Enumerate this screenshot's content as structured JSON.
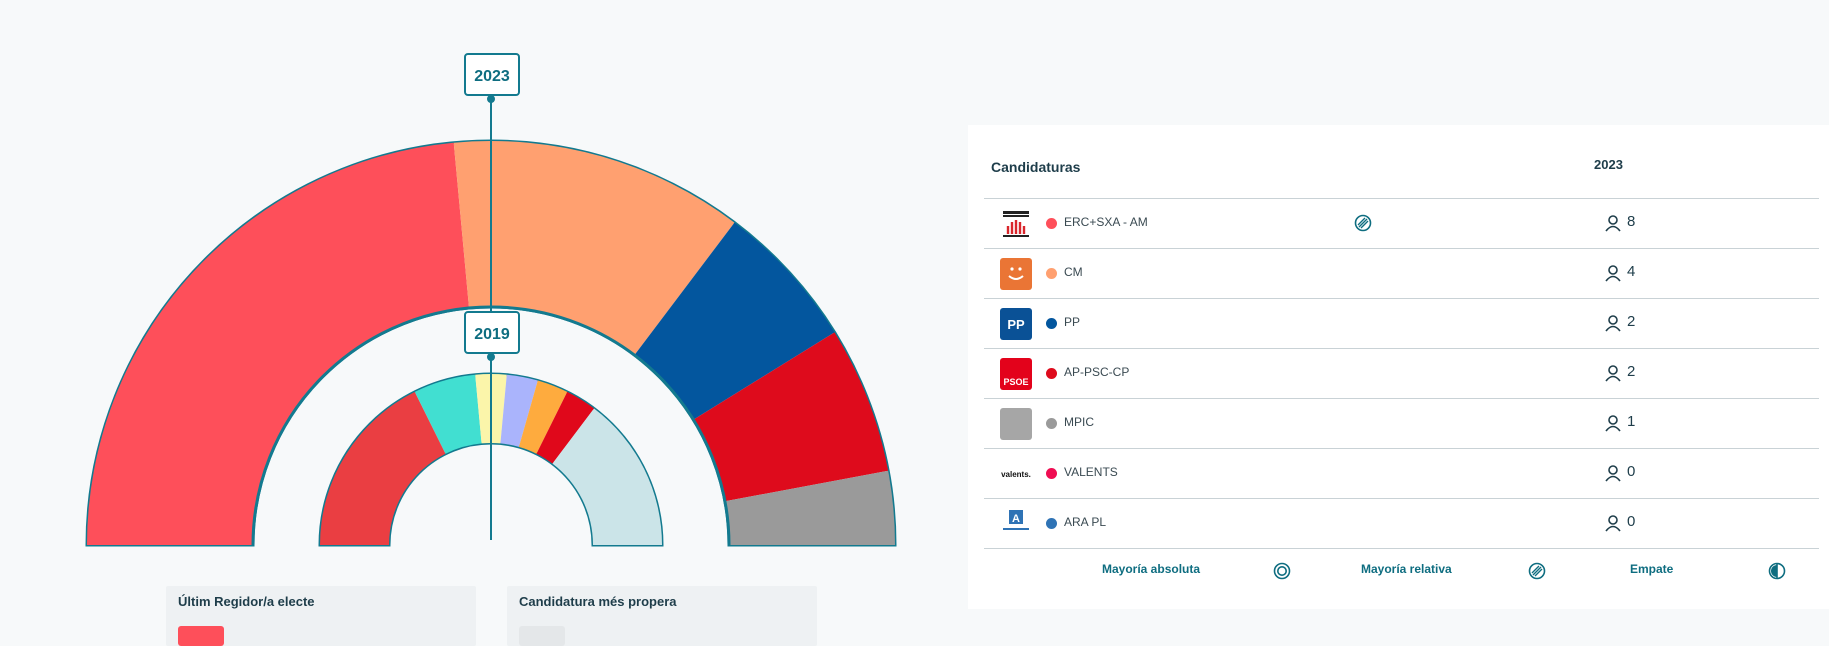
{
  "chart_data": {
    "type": "hemicycle",
    "outer": {
      "label": "2023",
      "total_seats": 17,
      "parties": [
        {
          "name": "ERC+SXA - AM",
          "seats": 8,
          "color": "#fe4f5a"
        },
        {
          "name": "CM",
          "seats": 4,
          "color": "#ffa070"
        },
        {
          "name": "PP",
          "seats": 2,
          "color": "#03569e"
        },
        {
          "name": "AP-PSC-CP",
          "seats": 2,
          "color": "#de0b1c"
        },
        {
          "name": "MPIC",
          "seats": 1,
          "color": "#9a9a9a"
        }
      ]
    },
    "inner": {
      "label": "2019",
      "segments": [
        {
          "value": 6,
          "color": "#ea3e42"
        },
        {
          "value": 2,
          "color": "#41dfd1"
        },
        {
          "value": 1,
          "color": "#fbf5aa"
        },
        {
          "value": 1,
          "color": "#aab4fc"
        },
        {
          "value": 1,
          "color": "#feab3e"
        },
        {
          "value": 1,
          "color": "#e0081b"
        },
        {
          "value": 5,
          "color": "#cbe4e8"
        }
      ]
    }
  },
  "cards": {
    "last_elected": {
      "title": "Últim Regidor/a electe",
      "color": "#fe4f5a"
    },
    "closest": {
      "title": "Candidatura més propera",
      "color": "#e4e7e9"
    }
  },
  "table": {
    "col_candidates": "Candidaturas",
    "col_year": "2023",
    "rows": [
      {
        "name": "ERC+SXA - AM",
        "seats": "8",
        "color": "#fe4f5a",
        "logo": "erc-logo",
        "logo_bg": "#ffffff",
        "logo_text": "",
        "majority": "relative"
      },
      {
        "name": "CM",
        "seats": "4",
        "color": "#ffa070",
        "logo": "cm-logo",
        "logo_bg": "#ea7535",
        "logo_text": "",
        "majority": ""
      },
      {
        "name": "PP",
        "seats": "2",
        "color": "#03569e",
        "logo": "pp-logo",
        "logo_bg": "#0a5196",
        "logo_text": "PP",
        "majority": ""
      },
      {
        "name": "AP-PSC-CP",
        "seats": "2",
        "color": "#de0b1c",
        "logo": "psoe-logo",
        "logo_bg": "#e3021b",
        "logo_text": "PSOE",
        "majority": ""
      },
      {
        "name": "MPIC",
        "seats": "1",
        "color": "#9a9a9a",
        "logo": "mpic-logo",
        "logo_bg": "#a6a6a6",
        "logo_text": "",
        "majority": ""
      },
      {
        "name": "VALENTS",
        "seats": "0",
        "color": "#ef0d52",
        "logo": "valents-logo",
        "logo_bg": "#ffffff",
        "logo_text": "valents.",
        "majority": ""
      },
      {
        "name": "ARA PL",
        "seats": "0",
        "color": "#2f73b5",
        "logo": "ara-logo",
        "logo_bg": "#ffffff",
        "logo_text": "",
        "majority": ""
      }
    ]
  },
  "legend": {
    "absolute": "Mayoría absoluta",
    "relative": "Mayoría relativa",
    "tie": "Empate"
  },
  "colors": {
    "accent": "#0e6d80",
    "border": "#137a8f"
  }
}
